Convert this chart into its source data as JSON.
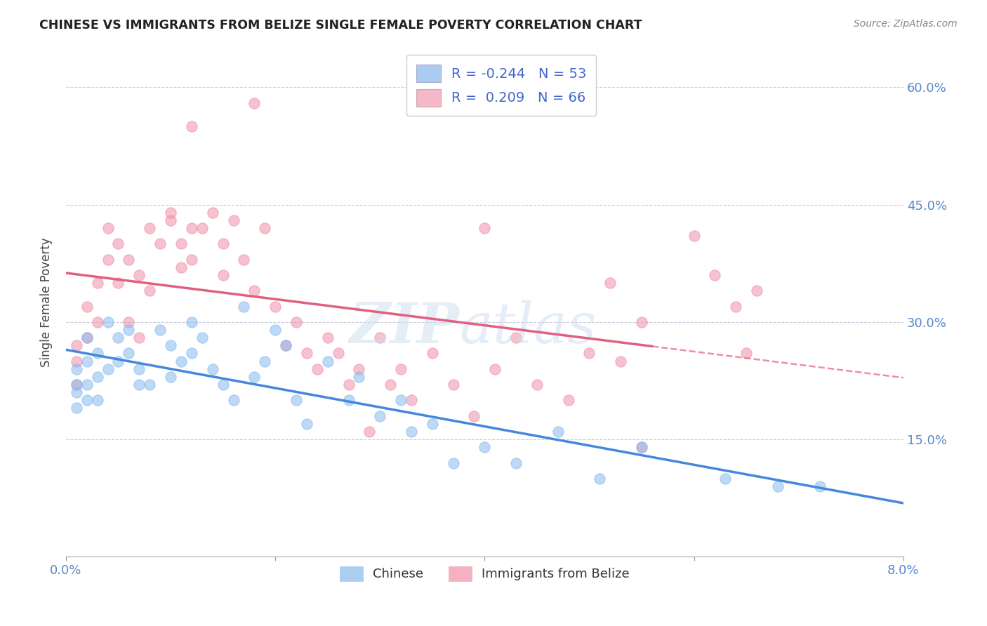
{
  "title": "CHINESE VS IMMIGRANTS FROM BELIZE SINGLE FEMALE POVERTY CORRELATION CHART",
  "source": "Source: ZipAtlas.com",
  "ylabel": "Single Female Poverty",
  "ytick_labels": [
    "15.0%",
    "30.0%",
    "45.0%",
    "60.0%"
  ],
  "ytick_values": [
    0.15,
    0.3,
    0.45,
    0.6
  ],
  "xlim": [
    0.0,
    0.08
  ],
  "ylim": [
    0.0,
    0.65
  ],
  "legend_label_chinese": "Chinese",
  "legend_label_belize": "Immigrants from Belize",
  "chinese_color": "#88bbee",
  "belize_color": "#f090a8",
  "chinese_trend_color": "#4488dd",
  "belize_trend_color": "#e06080",
  "legend_blue_color": "#aaccf0",
  "legend_pink_color": "#f4b8c8",
  "chinese_x": [
    0.001,
    0.001,
    0.001,
    0.001,
    0.002,
    0.002,
    0.002,
    0.002,
    0.003,
    0.003,
    0.003,
    0.004,
    0.004,
    0.005,
    0.005,
    0.006,
    0.006,
    0.007,
    0.007,
    0.008,
    0.009,
    0.01,
    0.01,
    0.011,
    0.012,
    0.012,
    0.013,
    0.014,
    0.015,
    0.016,
    0.017,
    0.018,
    0.019,
    0.02,
    0.021,
    0.022,
    0.023,
    0.025,
    0.027,
    0.028,
    0.03,
    0.032,
    0.033,
    0.035,
    0.037,
    0.04,
    0.043,
    0.047,
    0.051,
    0.055,
    0.063,
    0.068,
    0.072
  ],
  "chinese_y": [
    0.21,
    0.24,
    0.22,
    0.19,
    0.28,
    0.25,
    0.22,
    0.2,
    0.26,
    0.23,
    0.2,
    0.24,
    0.3,
    0.28,
    0.25,
    0.29,
    0.26,
    0.24,
    0.22,
    0.22,
    0.29,
    0.27,
    0.23,
    0.25,
    0.3,
    0.26,
    0.28,
    0.24,
    0.22,
    0.2,
    0.32,
    0.23,
    0.25,
    0.29,
    0.27,
    0.2,
    0.17,
    0.25,
    0.2,
    0.23,
    0.18,
    0.2,
    0.16,
    0.17,
    0.12,
    0.14,
    0.12,
    0.16,
    0.1,
    0.14,
    0.1,
    0.09,
    0.09
  ],
  "belize_x": [
    0.001,
    0.001,
    0.001,
    0.002,
    0.002,
    0.003,
    0.003,
    0.004,
    0.004,
    0.005,
    0.005,
    0.006,
    0.006,
    0.007,
    0.007,
    0.008,
    0.008,
    0.009,
    0.01,
    0.01,
    0.011,
    0.011,
    0.012,
    0.012,
    0.013,
    0.014,
    0.015,
    0.015,
    0.016,
    0.017,
    0.018,
    0.019,
    0.02,
    0.021,
    0.022,
    0.023,
    0.024,
    0.025,
    0.026,
    0.027,
    0.028,
    0.029,
    0.03,
    0.031,
    0.032,
    0.033,
    0.035,
    0.037,
    0.039,
    0.041,
    0.043,
    0.045,
    0.048,
    0.05,
    0.052,
    0.053,
    0.055,
    0.06,
    0.062,
    0.064,
    0.065,
    0.066,
    0.012,
    0.018,
    0.04,
    0.055
  ],
  "belize_y": [
    0.25,
    0.27,
    0.22,
    0.32,
    0.28,
    0.35,
    0.3,
    0.38,
    0.42,
    0.4,
    0.35,
    0.38,
    0.3,
    0.36,
    0.28,
    0.34,
    0.42,
    0.4,
    0.43,
    0.44,
    0.4,
    0.37,
    0.42,
    0.38,
    0.42,
    0.44,
    0.4,
    0.36,
    0.43,
    0.38,
    0.34,
    0.42,
    0.32,
    0.27,
    0.3,
    0.26,
    0.24,
    0.28,
    0.26,
    0.22,
    0.24,
    0.16,
    0.28,
    0.22,
    0.24,
    0.2,
    0.26,
    0.22,
    0.18,
    0.24,
    0.28,
    0.22,
    0.2,
    0.26,
    0.35,
    0.25,
    0.3,
    0.41,
    0.36,
    0.32,
    0.26,
    0.34,
    0.55,
    0.58,
    0.42,
    0.14
  ]
}
